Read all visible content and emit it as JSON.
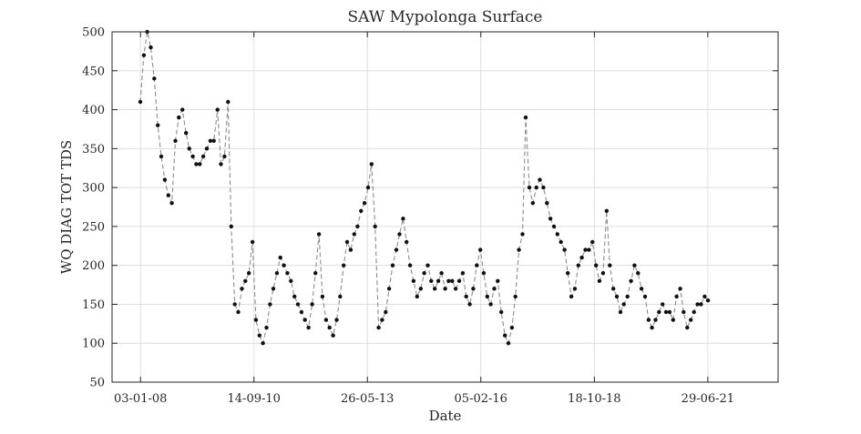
{
  "chart_data": {
    "type": "line",
    "title": "SAW Mypolonga Surface",
    "xlabel": "Date",
    "ylabel": "WQ DIAG TOT TDS",
    "ylim": [
      50,
      500
    ],
    "yticks": [
      50,
      100,
      150,
      200,
      250,
      300,
      350,
      400,
      450,
      500
    ],
    "xlim": [
      "2007-05-01",
      "2023-03-01"
    ],
    "xticks": [
      "2008-01-03",
      "2010-09-14",
      "2013-05-26",
      "2016-02-05",
      "2018-10-18",
      "2021-06-29"
    ],
    "xtick_labels": [
      "03-01-08",
      "14-09-10",
      "26-05-13",
      "05-02-16",
      "18-10-18",
      "29-06-21"
    ],
    "grid": true,
    "line_style": "dashed",
    "line_color": "#8c8c8c",
    "marker_color": "#111111",
    "series": [
      {
        "x": [
          "2008-01-01",
          "2008-02-01",
          "2008-03-01",
          "2008-04-01",
          "2008-05-01",
          "2008-06-01",
          "2008-07-01",
          "2008-08-01",
          "2008-09-01",
          "2008-10-01",
          "2008-11-01",
          "2008-12-01",
          "2009-01-01",
          "2009-02-01",
          "2009-03-01",
          "2009-04-01",
          "2009-05-01",
          "2009-06-01",
          "2009-07-01",
          "2009-08-01",
          "2009-09-01",
          "2009-10-01",
          "2009-11-01",
          "2009-12-01",
          "2010-01-01",
          "2010-02-01",
          "2010-03-01",
          "2010-04-01",
          "2010-05-01",
          "2010-06-01",
          "2010-07-01",
          "2010-08-01",
          "2010-09-01",
          "2010-10-01",
          "2010-11-01",
          "2010-12-01",
          "2011-01-01",
          "2011-02-01",
          "2011-03-01",
          "2011-04-01",
          "2011-05-01",
          "2011-06-01",
          "2011-07-01",
          "2011-08-01",
          "2011-09-01",
          "2011-10-01",
          "2011-11-01",
          "2011-12-01",
          "2012-01-01",
          "2012-02-01",
          "2012-03-01",
          "2012-04-01",
          "2012-05-01",
          "2012-06-01",
          "2012-07-01",
          "2012-08-01",
          "2012-09-01",
          "2012-10-01",
          "2012-11-01",
          "2012-12-01",
          "2013-01-01",
          "2013-02-01",
          "2013-03-01",
          "2013-04-01",
          "2013-05-01",
          "2013-06-01",
          "2013-07-01",
          "2013-08-01",
          "2013-09-01",
          "2013-10-01",
          "2013-11-01",
          "2013-12-01",
          "2014-01-01",
          "2014-02-01",
          "2014-03-01",
          "2014-04-01",
          "2014-05-01",
          "2014-06-01",
          "2014-07-01",
          "2014-08-01",
          "2014-09-01",
          "2014-10-01",
          "2014-11-01",
          "2014-12-01",
          "2015-01-01",
          "2015-02-01",
          "2015-03-01",
          "2015-04-01",
          "2015-05-01",
          "2015-06-01",
          "2015-07-01",
          "2015-08-01",
          "2015-09-01",
          "2015-10-01",
          "2015-11-01",
          "2015-12-01",
          "2016-01-01",
          "2016-02-01",
          "2016-03-01",
          "2016-04-01",
          "2016-05-01",
          "2016-06-01",
          "2016-07-01",
          "2016-08-01",
          "2016-09-01",
          "2016-10-01",
          "2016-11-01",
          "2016-12-01",
          "2017-01-01",
          "2017-02-01",
          "2017-03-01",
          "2017-04-01",
          "2017-05-01",
          "2017-06-01",
          "2017-07-01",
          "2017-08-01",
          "2017-09-01",
          "2017-10-01",
          "2017-11-01",
          "2017-12-01",
          "2018-01-01",
          "2018-02-01",
          "2018-03-01",
          "2018-04-01",
          "2018-05-01",
          "2018-06-01",
          "2018-07-01",
          "2018-08-01",
          "2018-09-01",
          "2018-10-01",
          "2018-11-01",
          "2018-12-01",
          "2019-01-01",
          "2019-02-01",
          "2019-03-01",
          "2019-04-01",
          "2019-05-01",
          "2019-06-01",
          "2019-07-01",
          "2019-08-01",
          "2019-09-01",
          "2019-10-01",
          "2019-11-01",
          "2019-12-01",
          "2020-01-01",
          "2020-02-01",
          "2020-03-01",
          "2020-04-01",
          "2020-05-01",
          "2020-06-01",
          "2020-07-01",
          "2020-08-01",
          "2020-09-01",
          "2020-10-01",
          "2020-11-01",
          "2020-12-01",
          "2021-01-01",
          "2021-02-01",
          "2021-03-01",
          "2021-04-01",
          "2021-05-01",
          "2021-06-01",
          "2021-07-01"
        ],
        "values": [
          410,
          470,
          500,
          480,
          440,
          380,
          340,
          310,
          290,
          280,
          360,
          390,
          400,
          370,
          350,
          340,
          330,
          330,
          340,
          350,
          360,
          360,
          400,
          330,
          340,
          410,
          250,
          150,
          140,
          170,
          180,
          190,
          230,
          130,
          110,
          100,
          120,
          150,
          170,
          190,
          210,
          200,
          190,
          180,
          160,
          150,
          140,
          130,
          120,
          150,
          190,
          240,
          160,
          130,
          120,
          110,
          130,
          160,
          200,
          230,
          220,
          240,
          250,
          270,
          280,
          300,
          330,
          250,
          120,
          130,
          140,
          170,
          200,
          220,
          240,
          260,
          230,
          200,
          180,
          160,
          170,
          190,
          200,
          180,
          170,
          180,
          190,
          170,
          180,
          180,
          170,
          180,
          190,
          160,
          150,
          170,
          200,
          220,
          190,
          160,
          150,
          170,
          180,
          140,
          110,
          100,
          120,
          160,
          220,
          240,
          390,
          300,
          280,
          300,
          310,
          300,
          280,
          260,
          250,
          240,
          230,
          220,
          190,
          160,
          170,
          200,
          210,
          220,
          220,
          230,
          200,
          180,
          190,
          270,
          200,
          170,
          160,
          140,
          150,
          160,
          180,
          200,
          190,
          170,
          160,
          130,
          120,
          130,
          140,
          150,
          140,
          140,
          130,
          160,
          170,
          140,
          120,
          130,
          140,
          150,
          150,
          160,
          155
        ]
      }
    ]
  }
}
